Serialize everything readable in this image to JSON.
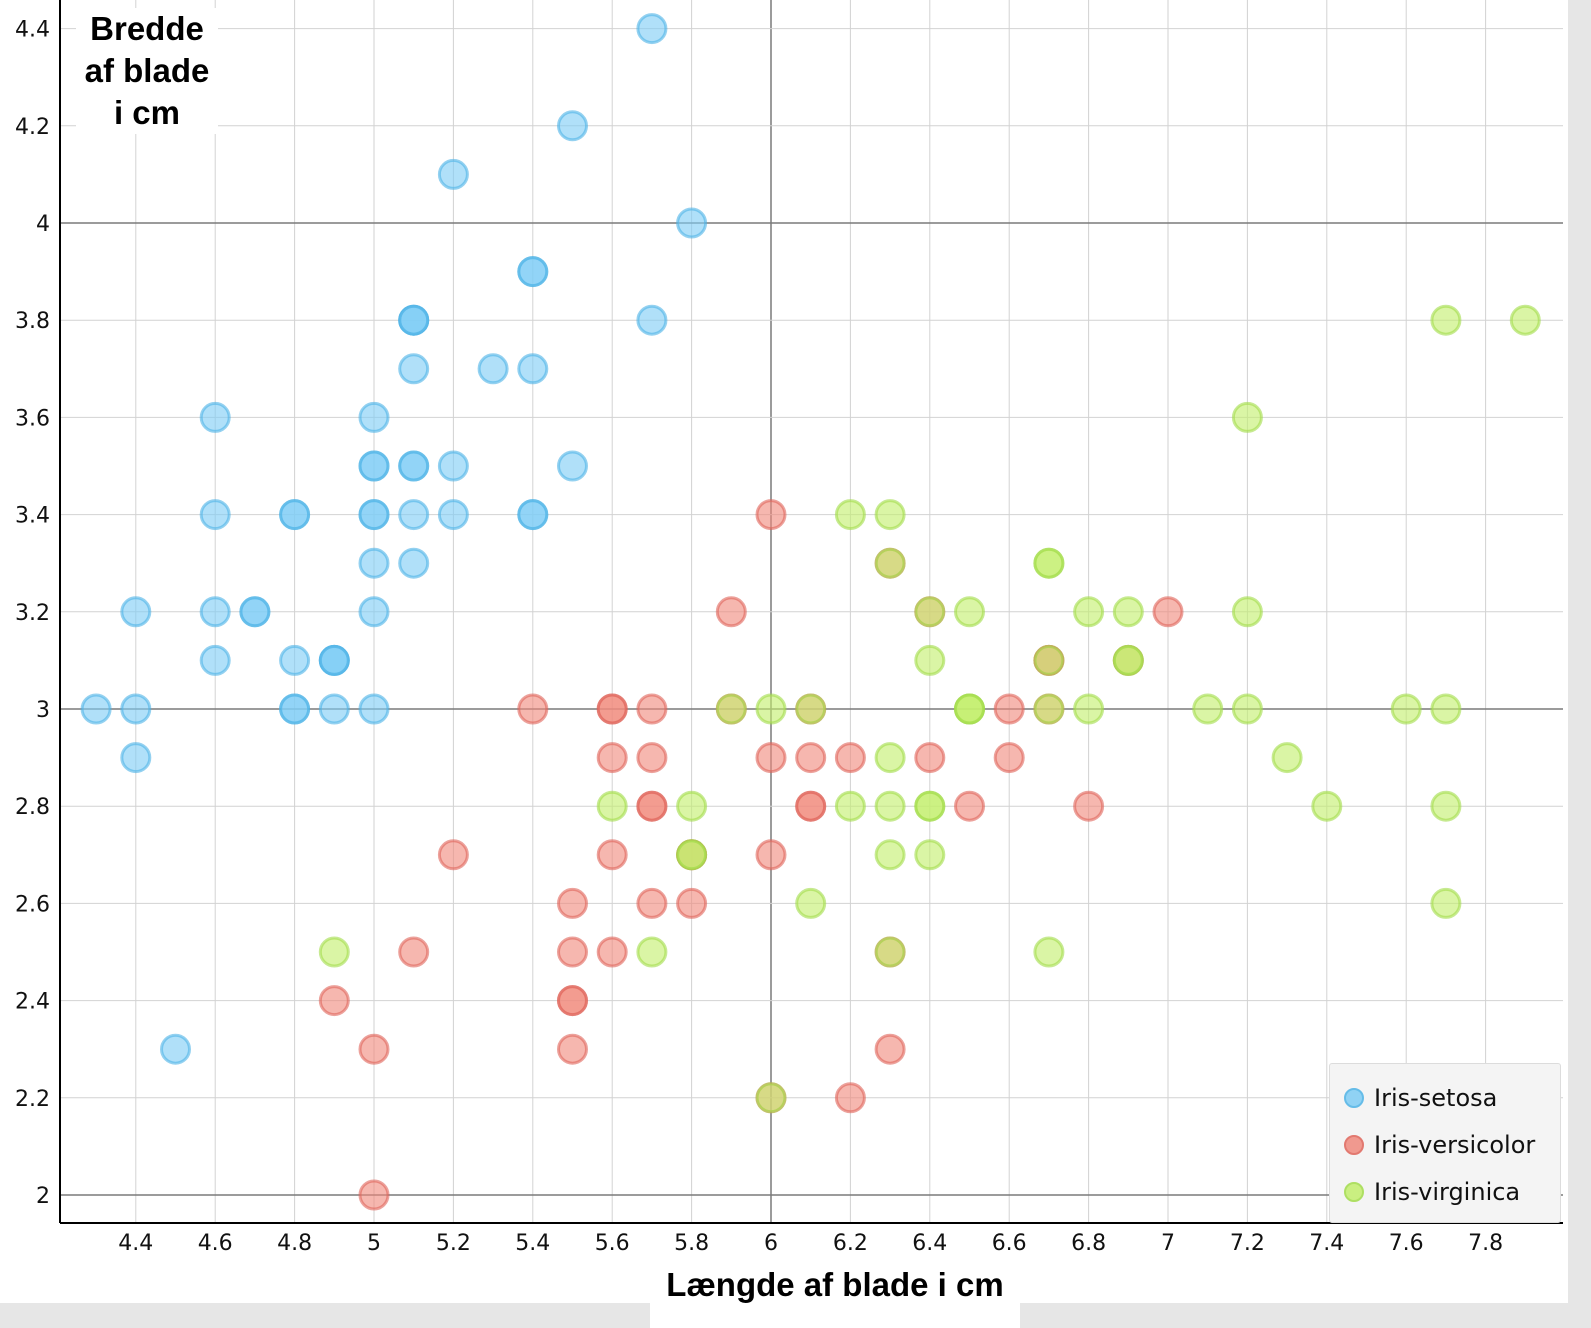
{
  "chart_data": {
    "type": "scatter",
    "title": "",
    "xlabel": "Længde af blade i cm",
    "ylabel": "Bredde af blade i cm",
    "ylabel_lines": [
      "Bredde",
      "af blade",
      "i cm"
    ],
    "xlim": [
      4.2,
      8.0
    ],
    "ylim": [
      1.94,
      4.46
    ],
    "x_ticks": [
      4.4,
      4.6,
      4.8,
      5,
      5.2,
      5.4,
      5.6,
      5.8,
      6,
      6.2,
      6.4,
      6.6,
      6.8,
      7,
      7.2,
      7.4,
      7.6,
      7.8
    ],
    "x_tick_labels": [
      "4.4",
      "4.6",
      "4.8",
      "5",
      "5.2",
      "5.4",
      "5.6",
      "5.8",
      "6",
      "6.2",
      "6.4",
      "6.6",
      "6.8",
      "7",
      "7.2",
      "7.4",
      "7.6",
      "7.8"
    ],
    "y_ticks": [
      2,
      2.2,
      2.4,
      2.6,
      2.8,
      3,
      3.2,
      3.4,
      3.6,
      3.8,
      4,
      4.2,
      4.4
    ],
    "y_tick_labels": [
      "2",
      "2.2",
      "2.4",
      "2.6",
      "2.8",
      "3",
      "3.2",
      "3.4",
      "3.6",
      "3.8",
      "4",
      "4.2",
      "4.4"
    ],
    "major_gridlines_y": [
      2,
      3,
      4
    ],
    "major_gridlines_x": [
      6
    ],
    "grid": true,
    "legend_position": "bottom-right",
    "series": [
      {
        "name": "Iris-setosa",
        "fill": "#7fcdf5",
        "stroke": "#4db3e6",
        "points": [
          [
            5.1,
            3.5
          ],
          [
            4.9,
            3.0
          ],
          [
            4.7,
            3.2
          ],
          [
            4.6,
            3.1
          ],
          [
            5.0,
            3.6
          ],
          [
            5.4,
            3.9
          ],
          [
            4.6,
            3.4
          ],
          [
            5.0,
            3.4
          ],
          [
            4.4,
            2.9
          ],
          [
            4.9,
            3.1
          ],
          [
            5.4,
            3.7
          ],
          [
            4.8,
            3.4
          ],
          [
            4.8,
            3.0
          ],
          [
            4.3,
            3.0
          ],
          [
            5.8,
            4.0
          ],
          [
            5.7,
            4.4
          ],
          [
            5.4,
            3.9
          ],
          [
            5.1,
            3.5
          ],
          [
            5.7,
            3.8
          ],
          [
            5.1,
            3.8
          ],
          [
            5.4,
            3.4
          ],
          [
            5.1,
            3.7
          ],
          [
            4.6,
            3.6
          ],
          [
            5.1,
            3.3
          ],
          [
            4.8,
            3.4
          ],
          [
            5.0,
            3.0
          ],
          [
            5.0,
            3.4
          ],
          [
            5.2,
            3.5
          ],
          [
            5.2,
            3.4
          ],
          [
            4.7,
            3.2
          ],
          [
            4.8,
            3.1
          ],
          [
            5.4,
            3.4
          ],
          [
            5.2,
            4.1
          ],
          [
            5.5,
            4.2
          ],
          [
            4.9,
            3.1
          ],
          [
            5.0,
            3.2
          ],
          [
            5.5,
            3.5
          ],
          [
            4.9,
            3.1
          ],
          [
            4.4,
            3.0
          ],
          [
            5.1,
            3.4
          ],
          [
            5.0,
            3.5
          ],
          [
            4.5,
            2.3
          ],
          [
            4.4,
            3.2
          ],
          [
            5.0,
            3.5
          ],
          [
            5.1,
            3.8
          ],
          [
            4.8,
            3.0
          ],
          [
            5.1,
            3.8
          ],
          [
            4.6,
            3.2
          ],
          [
            5.3,
            3.7
          ],
          [
            5.0,
            3.3
          ]
        ]
      },
      {
        "name": "Iris-versicolor",
        "fill": "#f08a7e",
        "stroke": "#e0645a",
        "points": [
          [
            7.0,
            3.2
          ],
          [
            6.4,
            3.2
          ],
          [
            6.9,
            3.1
          ],
          [
            5.5,
            2.3
          ],
          [
            6.5,
            2.8
          ],
          [
            5.7,
            2.8
          ],
          [
            6.3,
            3.3
          ],
          [
            4.9,
            2.4
          ],
          [
            6.6,
            2.9
          ],
          [
            5.2,
            2.7
          ],
          [
            5.0,
            2.0
          ],
          [
            5.9,
            3.0
          ],
          [
            6.0,
            2.2
          ],
          [
            6.1,
            2.9
          ],
          [
            5.6,
            2.9
          ],
          [
            6.7,
            3.1
          ],
          [
            5.6,
            3.0
          ],
          [
            5.8,
            2.7
          ],
          [
            6.2,
            2.2
          ],
          [
            5.6,
            2.5
          ],
          [
            5.9,
            3.2
          ],
          [
            6.1,
            2.8
          ],
          [
            6.3,
            2.5
          ],
          [
            6.1,
            2.8
          ],
          [
            6.4,
            2.9
          ],
          [
            6.6,
            3.0
          ],
          [
            6.8,
            2.8
          ],
          [
            6.7,
            3.0
          ],
          [
            6.0,
            2.9
          ],
          [
            5.7,
            2.6
          ],
          [
            5.5,
            2.4
          ],
          [
            5.5,
            2.4
          ],
          [
            5.8,
            2.7
          ],
          [
            6.0,
            2.7
          ],
          [
            5.4,
            3.0
          ],
          [
            6.0,
            3.4
          ],
          [
            6.7,
            3.1
          ],
          [
            6.3,
            2.3
          ],
          [
            5.6,
            3.0
          ],
          [
            5.5,
            2.5
          ],
          [
            5.5,
            2.6
          ],
          [
            6.1,
            3.0
          ],
          [
            5.8,
            2.6
          ],
          [
            5.0,
            2.3
          ],
          [
            5.6,
            2.7
          ],
          [
            5.7,
            3.0
          ],
          [
            5.7,
            2.9
          ],
          [
            6.2,
            2.9
          ],
          [
            5.1,
            2.5
          ],
          [
            5.7,
            2.8
          ]
        ]
      },
      {
        "name": "Iris-virginica",
        "fill": "#c3ef6e",
        "stroke": "#a2dc4a",
        "points": [
          [
            6.3,
            3.3
          ],
          [
            5.8,
            2.7
          ],
          [
            7.1,
            3.0
          ],
          [
            6.3,
            2.9
          ],
          [
            6.5,
            3.0
          ],
          [
            7.6,
            3.0
          ],
          [
            4.9,
            2.5
          ],
          [
            7.3,
            2.9
          ],
          [
            6.7,
            2.5
          ],
          [
            7.2,
            3.6
          ],
          [
            6.5,
            3.2
          ],
          [
            6.4,
            2.7
          ],
          [
            6.8,
            3.0
          ],
          [
            5.7,
            2.5
          ],
          [
            5.8,
            2.8
          ],
          [
            6.4,
            3.2
          ],
          [
            6.5,
            3.0
          ],
          [
            7.7,
            3.8
          ],
          [
            7.7,
            2.6
          ],
          [
            6.0,
            2.2
          ],
          [
            6.9,
            3.2
          ],
          [
            5.6,
            2.8
          ],
          [
            7.7,
            2.8
          ],
          [
            6.3,
            2.7
          ],
          [
            6.7,
            3.3
          ],
          [
            7.2,
            3.2
          ],
          [
            6.2,
            2.8
          ],
          [
            6.1,
            3.0
          ],
          [
            6.4,
            2.8
          ],
          [
            7.2,
            3.0
          ],
          [
            7.4,
            2.8
          ],
          [
            7.9,
            3.8
          ],
          [
            6.4,
            2.8
          ],
          [
            6.3,
            2.8
          ],
          [
            6.1,
            2.6
          ],
          [
            7.7,
            3.0
          ],
          [
            6.3,
            3.4
          ],
          [
            6.4,
            3.1
          ],
          [
            6.0,
            3.0
          ],
          [
            6.9,
            3.1
          ],
          [
            6.7,
            3.1
          ],
          [
            6.9,
            3.1
          ],
          [
            5.8,
            2.7
          ],
          [
            6.8,
            3.2
          ],
          [
            6.7,
            3.3
          ],
          [
            6.7,
            3.0
          ],
          [
            6.3,
            2.5
          ],
          [
            6.5,
            3.0
          ],
          [
            6.2,
            3.4
          ],
          [
            5.9,
            3.0
          ]
        ]
      }
    ]
  }
}
